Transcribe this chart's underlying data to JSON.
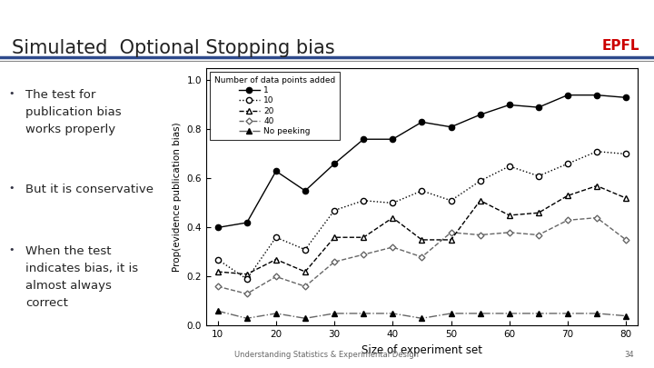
{
  "title": "Simulated  Optional Stopping bias",
  "epfl_text": "EPFL",
  "epfl_color": "#cc0000",
  "slide_bg": "#ffffff",
  "title_color": "#222222",
  "title_fontsize": 15,
  "footer_text": "Understanding Statistics & Experimental Design",
  "footer_page": "34",
  "bullets": [
    "The test for\npublication bias\nworks properly",
    "But it is conservative",
    "When the test\nindicates bias, it is\nalmost always\ncorrect"
  ],
  "bullet_color": "#222222",
  "bullet_fontsize": 9.5,
  "x": [
    10,
    15,
    20,
    25,
    30,
    35,
    40,
    45,
    50,
    55,
    60,
    65,
    70,
    75,
    80
  ],
  "series_1": [
    0.4,
    0.42,
    0.63,
    0.55,
    0.66,
    0.76,
    0.76,
    0.83,
    0.81,
    0.86,
    0.9,
    0.89,
    0.94,
    0.94,
    0.93
  ],
  "series_10": [
    0.27,
    0.19,
    0.36,
    0.31,
    0.47,
    0.51,
    0.5,
    0.55,
    0.51,
    0.59,
    0.65,
    0.61,
    0.66,
    0.71,
    0.7
  ],
  "series_20": [
    0.22,
    0.21,
    0.27,
    0.22,
    0.36,
    0.36,
    0.44,
    0.35,
    0.35,
    0.51,
    0.45,
    0.46,
    0.53,
    0.57,
    0.52
  ],
  "series_40": [
    0.16,
    0.13,
    0.2,
    0.16,
    0.26,
    0.29,
    0.32,
    0.28,
    0.38,
    0.37,
    0.38,
    0.37,
    0.43,
    0.44,
    0.35
  ],
  "series_nopeeking": [
    0.06,
    0.03,
    0.05,
    0.03,
    0.05,
    0.05,
    0.05,
    0.03,
    0.05,
    0.05,
    0.05,
    0.05,
    0.05,
    0.05,
    0.04
  ],
  "ylabel": "Prop(evidence publication bias)",
  "xlabel": "Size of experiment set",
  "legend_title": "Number of data points added",
  "ylim": [
    0,
    1.05
  ],
  "xlim": [
    8,
    82
  ],
  "xticks": [
    10,
    20,
    30,
    40,
    50,
    60,
    70,
    80
  ],
  "yticks": [
    0,
    0.2,
    0.4,
    0.6,
    0.8,
    1.0
  ],
  "header_line_color1": "#2e4a8c",
  "header_line_color2": "#8a8a8a"
}
